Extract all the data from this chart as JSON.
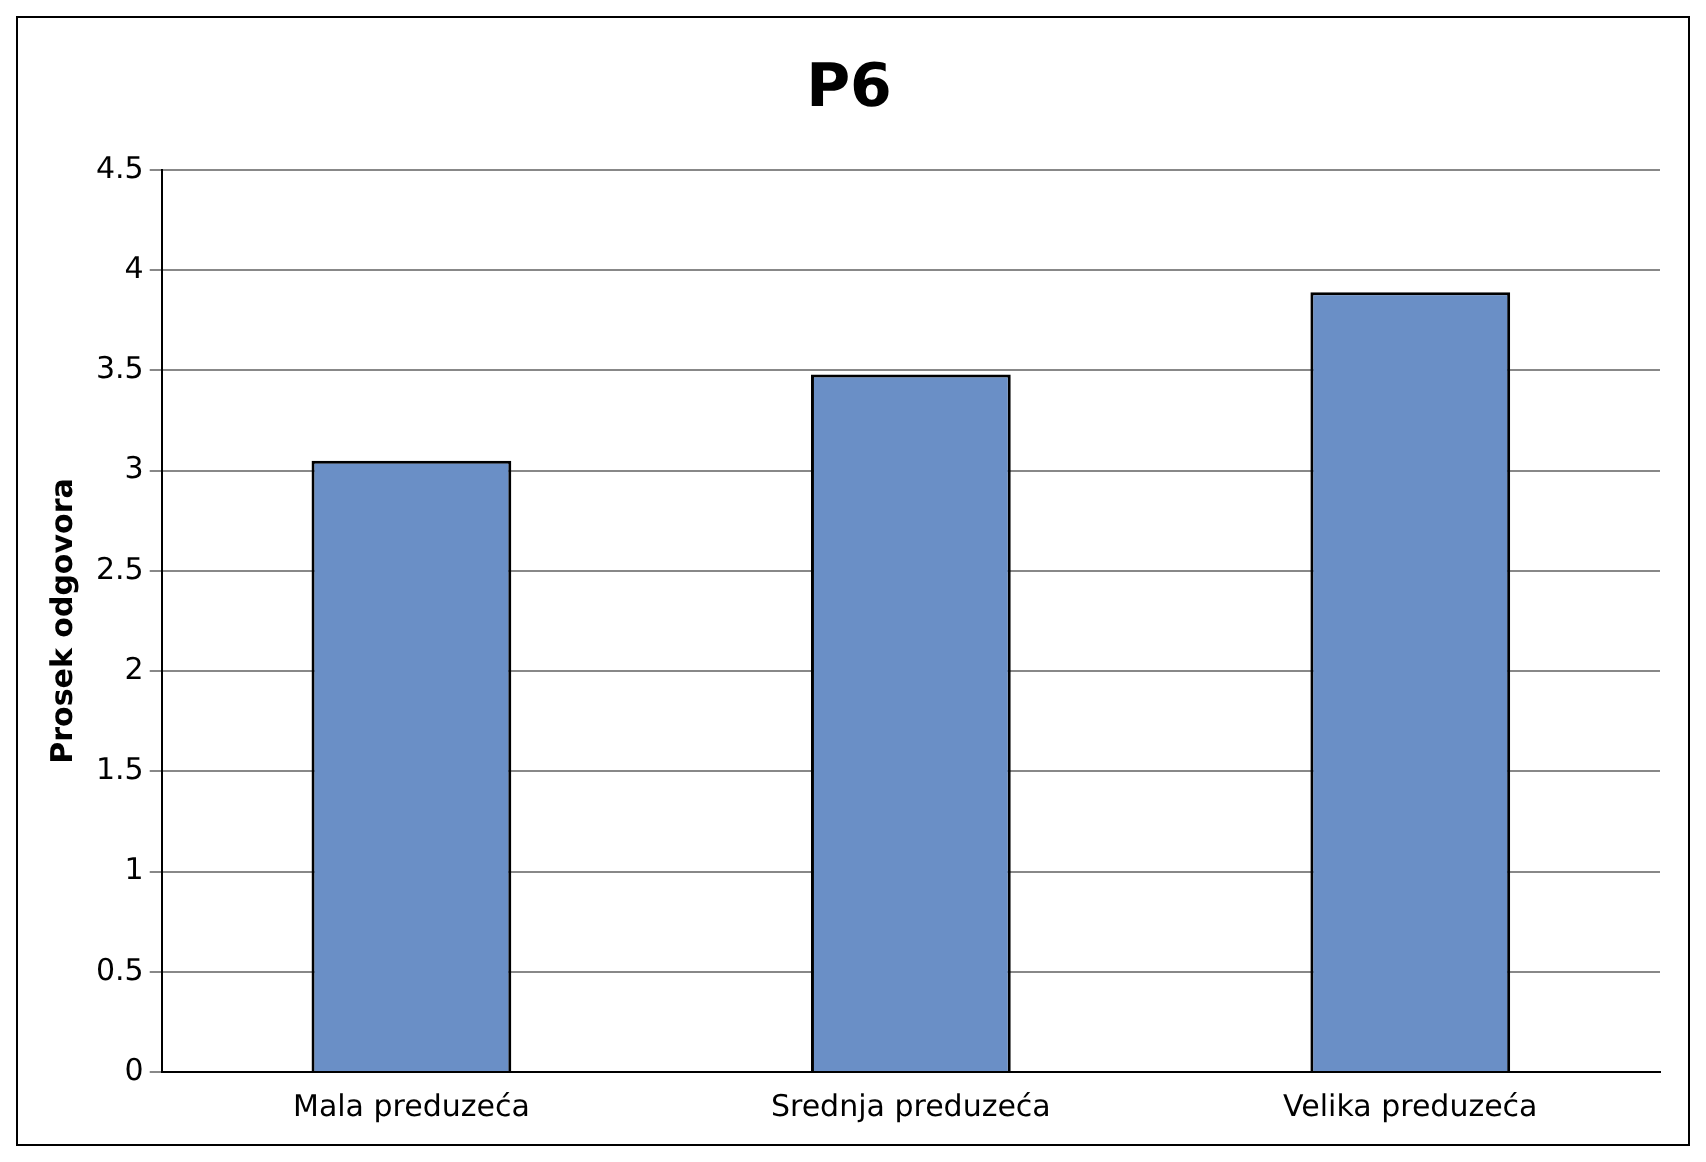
{
  "chart_data": {
    "type": "bar",
    "title": "P6",
    "ylabel": "Prosek odgovora",
    "categories": [
      "Mala preduzeća",
      "Srednja preduzeća",
      "Velika preduzeća"
    ],
    "values": [
      3.05,
      3.48,
      3.89
    ],
    "color": "#6a8fc6",
    "ylim": [
      0,
      4.5
    ],
    "yticks": [
      0,
      0.5,
      1,
      1.5,
      2,
      2.5,
      3,
      3.5,
      4,
      4.5
    ],
    "grid": "y",
    "legend": false
  }
}
